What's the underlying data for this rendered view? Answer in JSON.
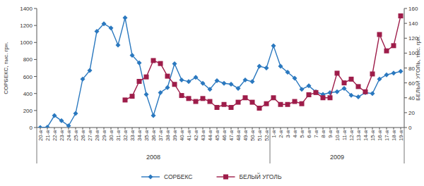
{
  "chart_data": {
    "type": "line",
    "y_label": "СОРБЕКС, тыс. грн.",
    "y2_label": "БЕЛЫЙ УГОЛЬ, тыс. грн.",
    "categories": [
      "20-я",
      "21-я",
      "22-я",
      "23-я",
      "24-я",
      "25-я",
      "26-я",
      "27-я",
      "28-я",
      "29-я",
      "30-я",
      "31-я",
      "32-я",
      "33-я",
      "34-я",
      "35-я",
      "36-я",
      "37-я",
      "38-я",
      "39-я",
      "40-я",
      "41-я",
      "42-я",
      "43-я",
      "44-я",
      "45-я",
      "46-я",
      "47-я",
      "48-я",
      "49-я",
      "50-я",
      "51-я",
      "52-я",
      "1-я",
      "2-я",
      "3-я",
      "4-я",
      "5-я",
      "6-я",
      "7-я",
      "8-я",
      "9-я",
      "10-я",
      "11-я",
      "12-я",
      "13-я",
      "14-я",
      "15-я",
      "16-я",
      "17-я",
      "18-я",
      "19-я"
    ],
    "groups": [
      {
        "label": "2008",
        "count": 33
      },
      {
        "label": "2009",
        "count": 19
      }
    ],
    "series": [
      {
        "name": "СОРБЕКС",
        "color": "#2a78bf",
        "marker": "diamond",
        "axis": "y",
        "values": [
          0,
          5,
          140,
          80,
          20,
          165,
          570,
          670,
          1130,
          1220,
          1170,
          970,
          1290,
          850,
          760,
          390,
          140,
          410,
          470,
          750,
          560,
          540,
          590,
          520,
          450,
          550,
          520,
          510,
          460,
          560,
          540,
          720,
          700,
          960,
          720,
          650,
          580,
          450,
          490,
          420,
          390,
          410,
          420,
          460,
          380,
          360,
          410,
          400,
          570,
          620,
          640,
          660
        ]
      },
      {
        "name": "БЕЛЫЙ УГОЛЬ",
        "color": "#9e1d4a",
        "marker": "square",
        "axis": "y2",
        "values": [
          null,
          null,
          null,
          null,
          null,
          null,
          null,
          null,
          null,
          null,
          null,
          null,
          37,
          42,
          62,
          68,
          90,
          86,
          69,
          58,
          43,
          39,
          35,
          39,
          35,
          27,
          31,
          27,
          34,
          40,
          34,
          26,
          32,
          40,
          31,
          31,
          35,
          32,
          44,
          47,
          40,
          40,
          73,
          60,
          65,
          55,
          48,
          72,
          125,
          103,
          110,
          150
        ]
      }
    ],
    "ylim": [
      0,
      1400
    ],
    "yticks": [
      0,
      200,
      400,
      600,
      800,
      1000,
      1200,
      1400
    ],
    "y2lim": [
      0,
      160
    ],
    "y2ticks": [
      0,
      20,
      40,
      60,
      80,
      100,
      120,
      140,
      160
    ],
    "grid": false,
    "legend": "bottom"
  }
}
